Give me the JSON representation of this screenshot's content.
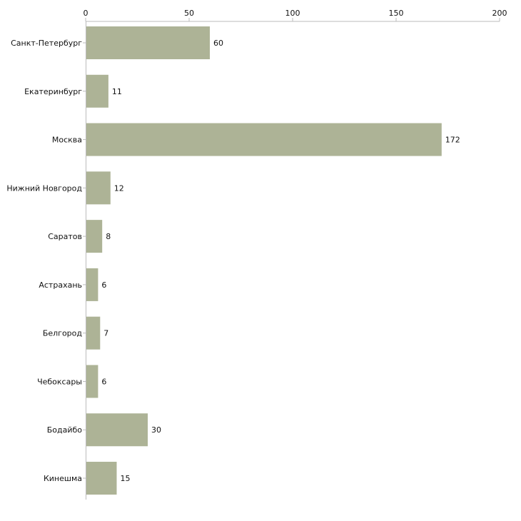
{
  "chart_data": {
    "type": "bar",
    "orientation": "horizontal",
    "title": "",
    "xlabel": "",
    "ylabel": "",
    "xlim": [
      0,
      200
    ],
    "x_ticks": [
      0,
      50,
      100,
      150,
      200
    ],
    "x_tick_labels": [
      "0",
      "50",
      "100",
      "150",
      "200"
    ],
    "grid": false,
    "show_data_labels": true,
    "colors": {
      "bar": "#adb396",
      "axis": "#bbbbbb",
      "text": "#111111"
    },
    "categories": [
      "Санкт-Петербург",
      "Екатеринбург",
      "Москва",
      "Нижний Новгород",
      "Саратов",
      "Астрахань",
      "Белгород",
      "Чебоксары",
      "Бодайбо",
      "Кинешма"
    ],
    "values": [
      60,
      11,
      172,
      12,
      8,
      6,
      7,
      6,
      30,
      15
    ]
  }
}
